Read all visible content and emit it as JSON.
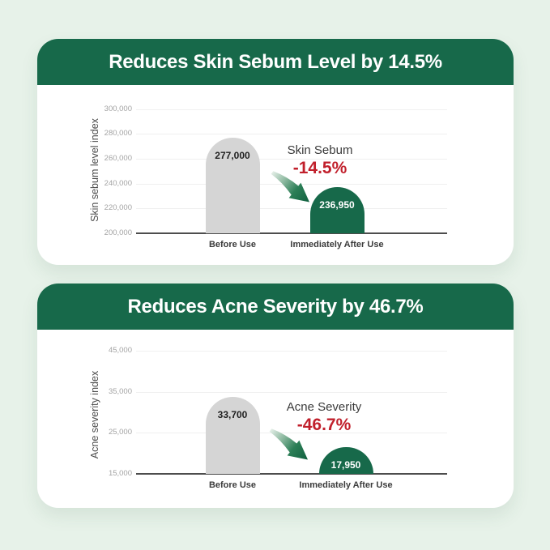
{
  "background_color": "#e7f2e9",
  "accent_green": "#17694a",
  "negative_red": "#c1202c",
  "chart_data": [
    {
      "type": "bar",
      "title": "Reduces Skin Sebum Level by 14.5%",
      "ylabel": "Skin sebum level index",
      "xlabel": "",
      "ylim": [
        200000,
        300000
      ],
      "yticks": [
        300000,
        280000,
        260000,
        240000,
        220000,
        200000
      ],
      "ytick_labels": [
        "300,000",
        "280,000",
        "260,000",
        "240,000",
        "220,000",
        "200,000"
      ],
      "categories": [
        "Before Use",
        "Immediately After Use"
      ],
      "values": [
        277000,
        236950
      ],
      "value_labels": [
        "277,000",
        "236,950"
      ],
      "bar_colors": [
        "#d5d5d5",
        "#17694a"
      ],
      "value_label_colors": [
        "#1f1f1f",
        "#ffffff"
      ],
      "grid": true,
      "legend": "none",
      "annotation": {
        "label": "Skin Sebum",
        "change": "-14.5%"
      }
    },
    {
      "type": "bar",
      "title": "Reduces Acne Severity by 46.7%",
      "ylabel": "Acne severity index",
      "xlabel": "",
      "ylim": [
        15000,
        45000
      ],
      "yticks": [
        45000,
        35000,
        25000,
        15000
      ],
      "ytick_labels": [
        "45,000",
        "35,000",
        "25,000",
        "15,000"
      ],
      "categories": [
        "Before Use",
        "Immediately After Use"
      ],
      "values": [
        33700,
        17950
      ],
      "value_labels": [
        "33,700",
        "17,950"
      ],
      "bar_colors": [
        "#d5d5d5",
        "#17694a"
      ],
      "value_label_colors": [
        "#1f1f1f",
        "#ffffff"
      ],
      "grid": true,
      "legend": "none",
      "annotation": {
        "label": "Acne Severity",
        "change": "-46.7%"
      }
    }
  ]
}
